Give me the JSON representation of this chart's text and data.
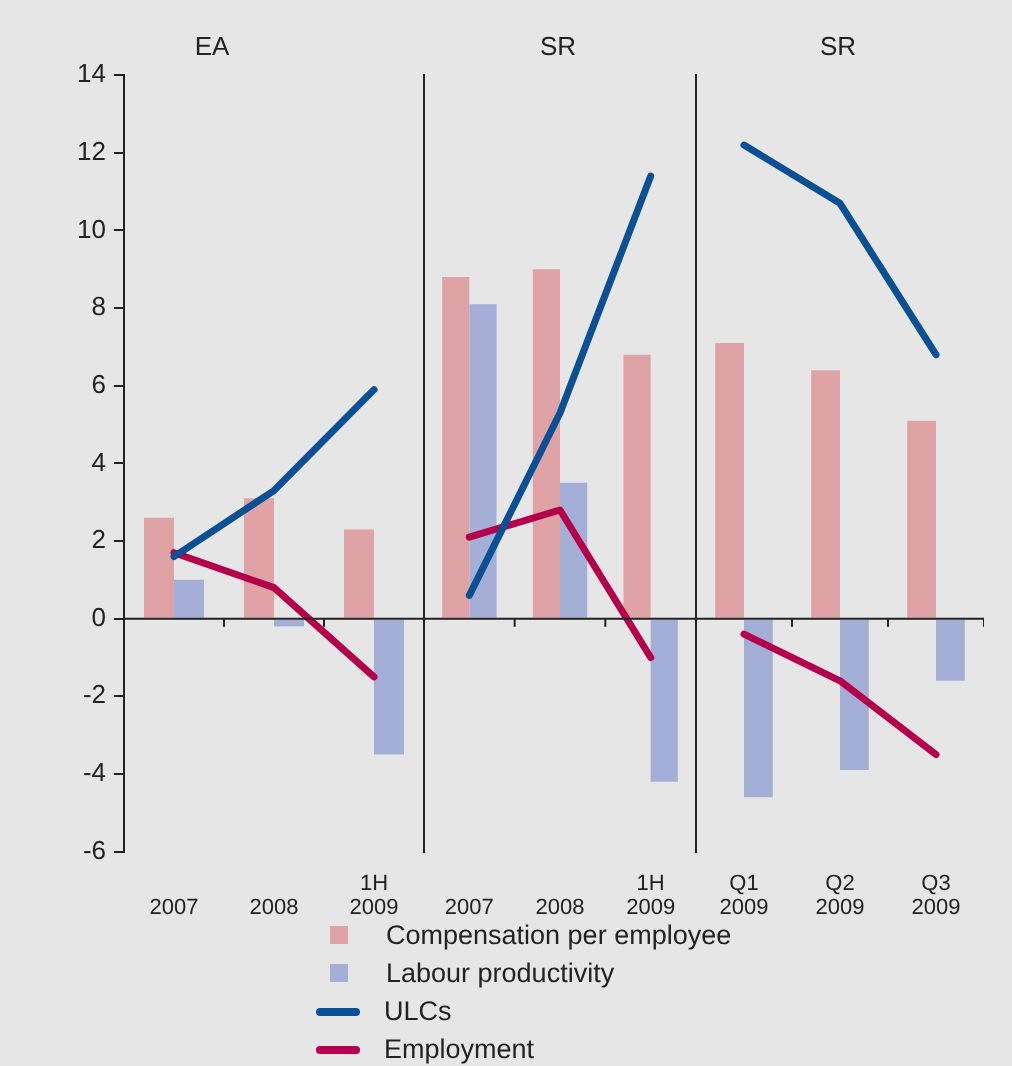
{
  "chart_data": [
    {
      "type": "bar",
      "title": "EA",
      "categories": [
        "2007",
        "2008",
        "1H 2009"
      ],
      "ylim": [
        -6,
        14
      ],
      "yticks": [
        -6,
        -4,
        -2,
        0,
        2,
        4,
        6,
        8,
        10,
        12,
        14
      ],
      "legend": "bottom",
      "marker": "none",
      "series": [
        {
          "name": "Compensation per employee",
          "color": "#e0a3a5",
          "values": [
            2.6,
            3.1,
            2.3
          ]
        },
        {
          "name": "Labour productivity",
          "color": "#a3afd6",
          "values": [
            1.0,
            -0.2,
            -3.5
          ]
        },
        {
          "name": "ULCs",
          "type": "line",
          "color": "#0b4f94",
          "values": [
            1.6,
            3.3,
            5.9
          ]
        },
        {
          "name": "Employment",
          "type": "line",
          "color": "#b5004b",
          "values": [
            1.7,
            0.8,
            -1.5
          ]
        }
      ]
    },
    {
      "type": "bar",
      "title": "SR",
      "categories": [
        "2007",
        "2008",
        "1H 2009"
      ],
      "ylim": [
        -6,
        14
      ],
      "yticks": [
        -6,
        -4,
        -2,
        0,
        2,
        4,
        6,
        8,
        10,
        12,
        14
      ],
      "tick_labels": "x",
      "marker": "none",
      "series": [
        {
          "color": "#e0a3a5",
          "values": [
            8.8,
            9.0,
            6.8
          ]
        },
        {
          "color": "#a3afd6",
          "values": [
            8.1,
            3.5,
            -4.2
          ]
        },
        {
          "type": "line",
          "color": "#0b4f94",
          "values": [
            0.6,
            5.3,
            11.4
          ]
        },
        {
          "type": "line",
          "color": "#b5004b",
          "values": [
            2.1,
            2.8,
            -1.0
          ]
        }
      ]
    },
    {
      "type": "bar",
      "title": "SR",
      "categories": [
        "Q1 2009",
        "Q2 2009",
        "Q3 2009"
      ],
      "ylim": [
        -6,
        14
      ],
      "yticks": [
        -6,
        -4,
        -2,
        0,
        2,
        4,
        6,
        8,
        10,
        12,
        14
      ],
      "tick_labels": "x",
      "marker": "none",
      "series": [
        {
          "color": "#e0a3a5",
          "values": [
            7.1,
            6.4,
            5.1
          ]
        },
        {
          "color": "#a3afd6",
          "values": [
            -4.6,
            -3.9,
            -1.6
          ]
        },
        {
          "type": "line",
          "color": "#0b4f94",
          "values": [
            12.2,
            10.7,
            6.8
          ]
        },
        {
          "type": "line",
          "color": "#b5004b",
          "values": [
            -0.4,
            -1.6,
            -3.5
          ]
        }
      ]
    }
  ]
}
